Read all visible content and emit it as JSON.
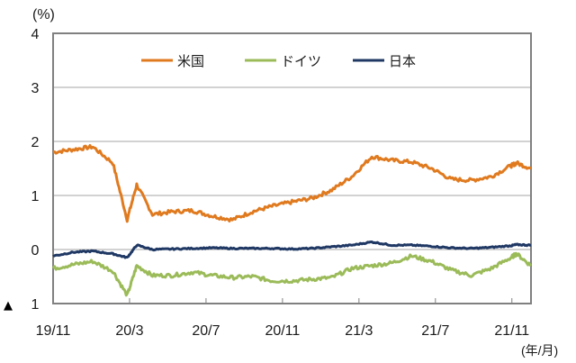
{
  "chart_data": {
    "type": "line",
    "title": "",
    "ylabel": "(%)",
    "xlabel": "(年/月)",
    "ylim": [
      -1,
      4
    ],
    "y_ticks": [
      4,
      3,
      2,
      1,
      0,
      -1
    ],
    "y_tick_labels": [
      "4",
      "3",
      "2",
      "1",
      "0",
      "1"
    ],
    "negative_marker": "▲",
    "x_tick_labels": [
      "19/11",
      "20/3",
      "20/7",
      "20/11",
      "21/3",
      "21/7",
      "21/11"
    ],
    "grid": true,
    "legend_position": "top-center",
    "x": [
      "19/11",
      "19/12",
      "20/1",
      "20/2",
      "20/3a",
      "20/3b",
      "20/4",
      "20/5",
      "20/6",
      "20/7",
      "20/8",
      "20/9",
      "20/10",
      "20/11",
      "20/12",
      "21/1",
      "21/2",
      "21/3",
      "21/4",
      "21/5",
      "21/6",
      "21/7",
      "21/8",
      "21/9",
      "21/10",
      "21/11",
      "21/12"
    ],
    "x_pos": [
      0,
      0.042,
      0.083,
      0.125,
      0.155,
      0.175,
      0.208,
      0.25,
      0.292,
      0.333,
      0.375,
      0.417,
      0.458,
      0.5,
      0.542,
      0.583,
      0.625,
      0.667,
      0.708,
      0.75,
      0.792,
      0.833,
      0.875,
      0.917,
      0.958,
      0.97,
      1.0
    ],
    "series": [
      {
        "name": "米国",
        "color": "#e07a1f",
        "values": [
          1.8,
          1.85,
          1.9,
          1.6,
          0.55,
          1.2,
          0.65,
          0.7,
          0.72,
          0.62,
          0.55,
          0.7,
          0.8,
          0.88,
          0.95,
          1.1,
          1.35,
          1.72,
          1.65,
          1.62,
          1.5,
          1.3,
          1.28,
          1.35,
          1.55,
          1.6,
          1.5
        ]
      },
      {
        "name": "ドイツ",
        "color": "#9bbb59",
        "values": [
          -0.35,
          -0.28,
          -0.22,
          -0.4,
          -0.85,
          -0.3,
          -0.48,
          -0.48,
          -0.42,
          -0.48,
          -0.52,
          -0.5,
          -0.58,
          -0.58,
          -0.55,
          -0.52,
          -0.35,
          -0.3,
          -0.25,
          -0.12,
          -0.22,
          -0.38,
          -0.48,
          -0.35,
          -0.15,
          -0.08,
          -0.3
        ]
      },
      {
        "name": "日本",
        "color": "#1f3864",
        "values": [
          -0.12,
          -0.05,
          -0.03,
          -0.08,
          -0.15,
          0.08,
          0.0,
          0.01,
          0.02,
          0.03,
          0.02,
          0.02,
          0.02,
          0.01,
          0.02,
          0.05,
          0.08,
          0.14,
          0.08,
          0.08,
          0.06,
          0.03,
          0.02,
          0.04,
          0.07,
          0.09,
          0.08
        ]
      }
    ]
  },
  "legend": {
    "items": [
      {
        "label": "米国",
        "color": "#e07a1f"
      },
      {
        "label": "ドイツ",
        "color": "#9bbb59"
      },
      {
        "label": "日本",
        "color": "#1f3864"
      }
    ]
  }
}
